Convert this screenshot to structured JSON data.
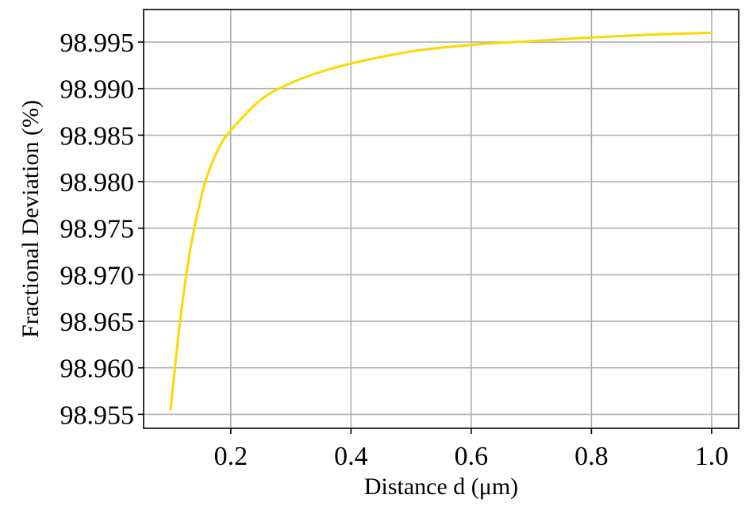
{
  "chart_data": {
    "type": "line",
    "title": "",
    "xlabel": "Distance d (μm)",
    "ylabel": "Fractional Deviation (%)",
    "xlim": [
      0.055,
      1.045
    ],
    "ylim": [
      98.9535,
      98.9985
    ],
    "x_ticks": [
      0.2,
      0.4,
      0.6,
      0.8,
      1.0
    ],
    "x_tick_labels": [
      "0.2",
      "0.4",
      "0.6",
      "0.8",
      "1.0"
    ],
    "y_ticks": [
      98.955,
      98.96,
      98.965,
      98.97,
      98.975,
      98.98,
      98.985,
      98.99,
      98.995
    ],
    "y_tick_labels": [
      "98.955",
      "98.960",
      "98.965",
      "98.970",
      "98.975",
      "98.980",
      "98.985",
      "98.990",
      "98.995"
    ],
    "grid": true,
    "series": [
      {
        "color": "#FFD700",
        "x": [
          0.1,
          0.11,
          0.12,
          0.13,
          0.14,
          0.15,
          0.16,
          0.18,
          0.2,
          0.25,
          0.3,
          0.35,
          0.4,
          0.5,
          0.6,
          0.7,
          0.8,
          0.9,
          1.0
        ],
        "y": [
          98.9555,
          98.9618,
          98.9672,
          98.9717,
          98.9752,
          98.9781,
          98.9805,
          98.9836,
          98.9855,
          98.9888,
          98.9906,
          98.9918,
          98.9927,
          98.994,
          98.9947,
          98.9951,
          98.9955,
          98.9958,
          98.996
        ]
      }
    ]
  }
}
